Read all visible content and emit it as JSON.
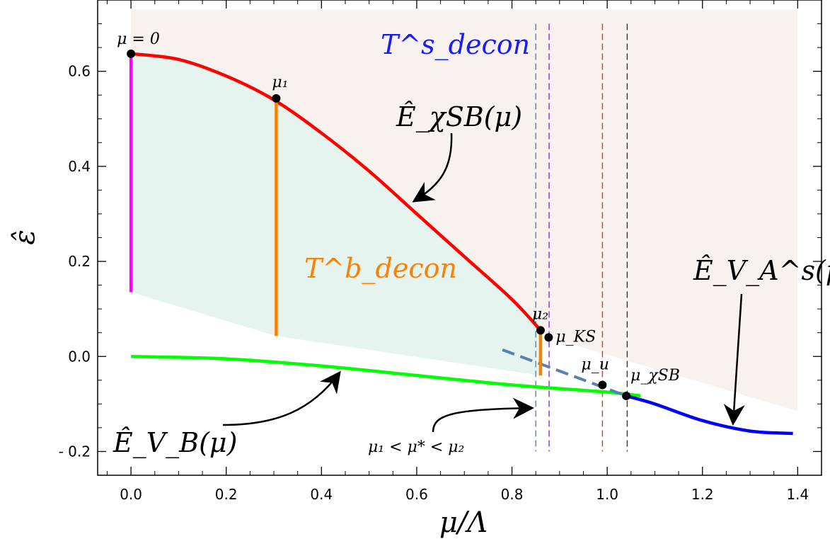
{
  "chart_data": {
    "type": "line",
    "xlabel": "μ/Λ",
    "ylabel": "ε̂",
    "xlim": [
      -0.07,
      1.45
    ],
    "ylim": [
      -0.25,
      0.75
    ],
    "x_ticks": [
      0.0,
      0.2,
      0.4,
      0.6,
      0.8,
      1.0,
      1.2,
      1.4
    ],
    "x_tick_labels": [
      "0.0",
      "0.2",
      "0.4",
      "0.6",
      "0.8",
      "1.0",
      "1.2",
      "1.4"
    ],
    "y_ticks": [
      -0.2,
      0.0,
      0.2,
      0.4,
      0.6
    ],
    "y_tick_labels": [
      "- 0.2",
      "0.0",
      "0.2",
      "0.4",
      "0.6"
    ],
    "series": [
      {
        "label": "Ê_χSB(μ)",
        "color": "#ff0000",
        "x": [
          0,
          0.1,
          0.2,
          0.3,
          0.4,
          0.5,
          0.6,
          0.7,
          0.8,
          0.86
        ],
        "y": [
          0.637,
          0.625,
          0.59,
          0.54,
          0.47,
          0.39,
          0.3,
          0.21,
          0.12,
          0.055
        ]
      },
      {
        "label": "Ê_V_B(μ)",
        "color": "#00ff00",
        "x": [
          0,
          0.2,
          0.4,
          0.6,
          0.8,
          1.0,
          1.07
        ],
        "y": [
          0.0,
          -0.005,
          -0.02,
          -0.04,
          -0.06,
          -0.075,
          -0.083
        ]
      },
      {
        "label": "Ê_V_A^s(μ)",
        "color": "#0000ff",
        "x": [
          1.04,
          1.1,
          1.2,
          1.3,
          1.39
        ],
        "y": [
          -0.083,
          -0.1,
          -0.135,
          -0.157,
          -0.162
        ]
      },
      {
        "label": "",
        "color": "#5b7fb5",
        "dashed": true,
        "x": [
          0.78,
          1.04
        ],
        "y": [
          0.014,
          -0.083
        ]
      }
    ],
    "points": [
      {
        "label": "μ = 0",
        "x": 0.0,
        "y": 0.637
      },
      {
        "label": "μ₁",
        "x": 0.305,
        "y": 0.543
      },
      {
        "label": "μ₂",
        "x": 0.86,
        "y": 0.055
      },
      {
        "label": "μ_KS",
        "x": 0.877,
        "y": 0.04
      },
      {
        "label": "μ_u",
        "x": 0.99,
        "y": -0.06
      },
      {
        "label": "μ_χSB",
        "x": 1.04,
        "y": -0.083
      }
    ],
    "vertical_segments": [
      {
        "color": "#ff00ff",
        "x": 0.0,
        "y": [
          0.135,
          0.637
        ]
      },
      {
        "color": "#ff8000",
        "x": 0.305,
        "y": [
          0.043,
          0.543
        ]
      },
      {
        "color": "#ff8000",
        "x": 0.86,
        "y": [
          -0.04,
          0.055
        ]
      }
    ],
    "dashed_verticals": [
      {
        "x": 0.85,
        "color": "#5b7fb5"
      },
      {
        "x": 0.878,
        "color": "#8a2be2"
      },
      {
        "x": 0.99,
        "color": "#e03030"
      },
      {
        "x": 1.042,
        "color": "#333333"
      }
    ],
    "regions": [
      {
        "label": "T^s_decon",
        "color": "#f7f2ee"
      },
      {
        "label": "T^b_decon",
        "color": "#e6f4f0"
      }
    ],
    "annotations": [
      {
        "id": "chisb",
        "text": "Ê_χSB(μ)"
      },
      {
        "id": "vb",
        "text": "Ê_V_B(μ)"
      },
      {
        "id": "va",
        "text": "Ê_V_A^s(μ)"
      },
      {
        "id": "mustar",
        "text": "μ₁ < μ* < μ₂"
      },
      {
        "id": "ts",
        "text": "T^s_decon"
      },
      {
        "id": "tb",
        "text": "T^b_decon"
      }
    ],
    "grid": false
  }
}
